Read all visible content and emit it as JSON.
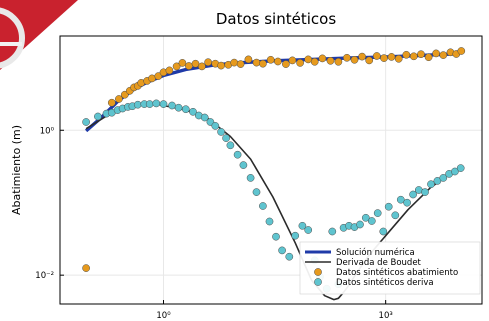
{
  "chart_data": {
    "type": "scatter",
    "title": "Datos sintéticos",
    "xlabel": "",
    "ylabel": "Abatimiento (m)",
    "xscale": "log",
    "yscale": "log",
    "xlim": [
      0.04,
      20000
    ],
    "ylim": [
      0.004,
      20
    ],
    "grid": true,
    "legend_position": "bottom-right",
    "x_ticks": [
      {
        "value": 1,
        "label": "10⁰"
      },
      {
        "value": 1000,
        "label": "10³"
      }
    ],
    "y_ticks": [
      {
        "value": 1,
        "label": "10⁰"
      },
      {
        "value": 0.01,
        "label": "10⁻²"
      }
    ],
    "series": [
      {
        "name": "Solución numérica",
        "kind": "line",
        "color": "#1f3aa8",
        "x": [
          0.09,
          0.15,
          0.25,
          0.4,
          0.6,
          1,
          2,
          5,
          10,
          30,
          100,
          300,
          1000,
          3000,
          10000
        ],
        "y": [
          0.98,
          1.55,
          2.6,
          3.7,
          4.6,
          5.7,
          6.9,
          8.0,
          8.5,
          9.1,
          9.5,
          9.9,
          10.3,
          10.8,
          11.4
        ]
      },
      {
        "name": "Derivada de Boudet",
        "kind": "line",
        "color": "#2b2b2b",
        "x": [
          0.09,
          0.2,
          0.4,
          0.7,
          1,
          2,
          4,
          8,
          15,
          30,
          60,
          100,
          150,
          200,
          230,
          270,
          320,
          400,
          600,
          1000,
          2000,
          4000,
          7000,
          10000
        ],
        "y": [
          1.05,
          1.75,
          2.25,
          2.35,
          2.2,
          1.9,
          1.45,
          0.82,
          0.4,
          0.12,
          0.028,
          0.0085,
          0.0052,
          0.0046,
          0.0048,
          0.0058,
          0.0073,
          0.0105,
          0.019,
          0.035,
          0.08,
          0.16,
          0.24,
          0.3
        ]
      },
      {
        "name": "Datos sintéticos abatimiento",
        "kind": "scatter",
        "color": "#e69a1e",
        "x": [
          0.09,
          0.2,
          0.25,
          0.3,
          0.35,
          0.4,
          0.45,
          0.5,
          0.6,
          0.7,
          0.85,
          1,
          1.2,
          1.5,
          1.8,
          2.2,
          2.7,
          3.3,
          4,
          5,
          6,
          7.5,
          9,
          11,
          14,
          18,
          22,
          28,
          35,
          45,
          55,
          70,
          90,
          110,
          140,
          180,
          230,
          300,
          380,
          480,
          600,
          760,
          950,
          1200,
          1500,
          1900,
          2400,
          3000,
          3800,
          4800,
          6000,
          7500,
          9000,
          10500
        ],
        "y": [
          0.0125,
          2.4,
          2.7,
          3.1,
          3.5,
          3.9,
          4.1,
          4.5,
          4.8,
          5.2,
          5.6,
          6.3,
          6.7,
          7.6,
          8.5,
          7.7,
          8.3,
          7.6,
          8.7,
          8.3,
          7.8,
          8.0,
          8.6,
          8.2,
          9.5,
          8.6,
          8.3,
          9.4,
          8.9,
          8.2,
          9.2,
          8.5,
          9.5,
          8.8,
          9.8,
          9.1,
          8.8,
          10.0,
          9.4,
          10.4,
          9.2,
          10.6,
          9.9,
          10.3,
          9.7,
          11.0,
          10.5,
          11.2,
          10.2,
          11.5,
          10.9,
          11.9,
          11.3,
          12.4
        ]
      },
      {
        "name": "Datos sintéticos deriva",
        "kind": "scatter",
        "color": "#5fc4cf",
        "x": [
          0.09,
          0.13,
          0.17,
          0.2,
          0.24,
          0.28,
          0.33,
          0.38,
          0.45,
          0.55,
          0.65,
          0.8,
          1,
          1.3,
          1.6,
          2,
          2.5,
          3,
          3.6,
          4.3,
          5,
          6,
          7,
          8,
          10,
          12,
          15,
          18,
          22,
          27,
          33,
          40,
          50,
          60,
          75,
          90,
          110,
          130,
          160,
          190,
          230,
          270,
          320,
          380,
          450,
          540,
          650,
          780,
          930,
          1100,
          1350,
          1600,
          1950,
          2350,
          2800,
          3400,
          4100,
          5000,
          6000,
          7200,
          8600,
          10300
        ],
        "y": [
          1.3,
          1.55,
          1.7,
          1.75,
          1.9,
          2.0,
          2.1,
          2.15,
          2.25,
          2.3,
          2.3,
          2.35,
          2.3,
          2.2,
          2.05,
          1.95,
          1.8,
          1.6,
          1.5,
          1.3,
          1.15,
          0.95,
          0.78,
          0.62,
          0.46,
          0.33,
          0.22,
          0.14,
          0.09,
          0.055,
          0.034,
          0.022,
          0.018,
          0.035,
          0.048,
          0.042,
          0.016,
          0.0095,
          0.0065,
          0.04,
          0.0075,
          0.045,
          0.048,
          0.046,
          0.05,
          0.062,
          0.056,
          0.072,
          0.04,
          0.088,
          0.067,
          0.11,
          0.1,
          0.13,
          0.15,
          0.14,
          0.18,
          0.2,
          0.22,
          0.25,
          0.27,
          0.3
        ]
      }
    ]
  }
}
